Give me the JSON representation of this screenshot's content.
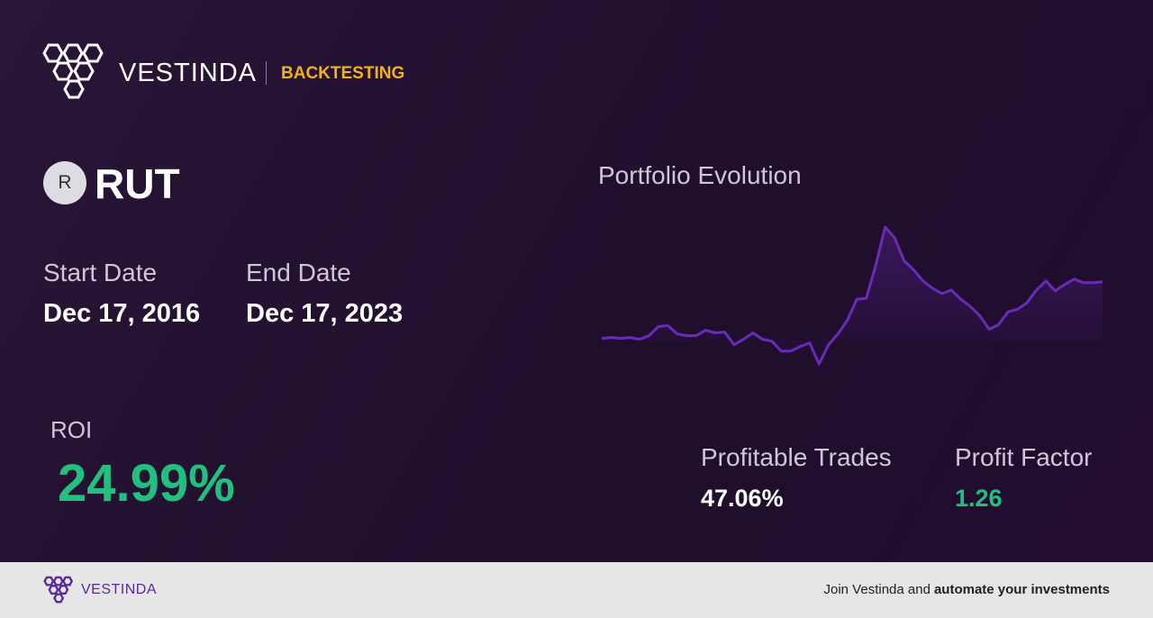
{
  "header": {
    "brand": "VESTINDA",
    "section": "BACKTESTING"
  },
  "asset": {
    "badge": "R",
    "ticker": "RUT"
  },
  "dates": {
    "start_label": "Start Date",
    "start": "Dec 17, 2016",
    "end_label": "End Date",
    "end": "Dec 17, 2023"
  },
  "chart_data": {
    "type": "line",
    "title": "Portfolio Evolution",
    "color": "#6a2bb8",
    "values": [
      25,
      26,
      25,
      26,
      24,
      28,
      38,
      39,
      30,
      28,
      28,
      34,
      31,
      32,
      18,
      24,
      31,
      24,
      22,
      11,
      11,
      16,
      20,
      -3,
      18,
      30,
      45,
      68,
      69,
      105,
      147,
      135,
      110,
      100,
      88,
      80,
      74,
      78,
      68,
      60,
      50,
      35,
      40,
      54,
      57,
      64,
      78,
      88,
      77,
      84,
      90,
      86,
      86,
      87
    ]
  },
  "metrics": {
    "roi_label": "ROI",
    "roi": "24.99%",
    "trades_label": "Profitable Trades",
    "trades": "47.06%",
    "factor_label": "Profit Factor",
    "factor": "1.26"
  },
  "footer": {
    "brand": "VESTINDA",
    "text": "Join Vestinda and",
    "emphasis": "automate your investments"
  }
}
